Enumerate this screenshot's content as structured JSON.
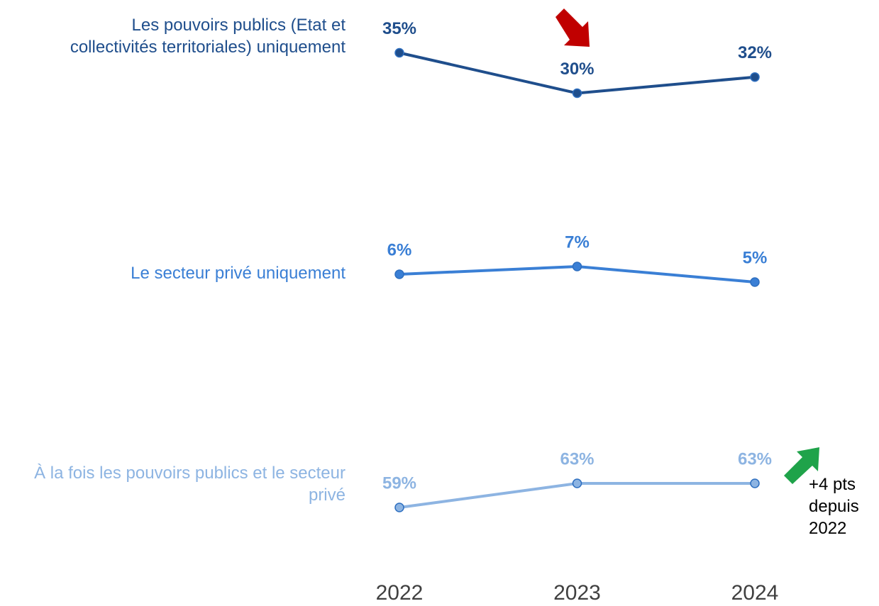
{
  "chart_data": {
    "type": "line",
    "categories": [
      "2022",
      "2023",
      "2024"
    ],
    "series": [
      {
        "name": "Les pouvoirs publics (Etat et collectivités territoriales) uniquement",
        "color": "#1f4e8c",
        "values": [
          35,
          30,
          32
        ],
        "value_labels": [
          "35%",
          "30%",
          "32%"
        ]
      },
      {
        "name": "Le secteur privé uniquement",
        "color": "#3a7fd5",
        "values": [
          6,
          7,
          5
        ],
        "value_labels": [
          "6%",
          "7%",
          "5%"
        ]
      },
      {
        "name": "À la fois les pouvoirs publics et le secteur privé",
        "color": "#8db4e2",
        "values": [
          59,
          63,
          63
        ],
        "value_labels": [
          "59%",
          "63%",
          "63%"
        ]
      }
    ],
    "annotations": [
      {
        "text": "+4 pts depuis 2022"
      }
    ]
  }
}
